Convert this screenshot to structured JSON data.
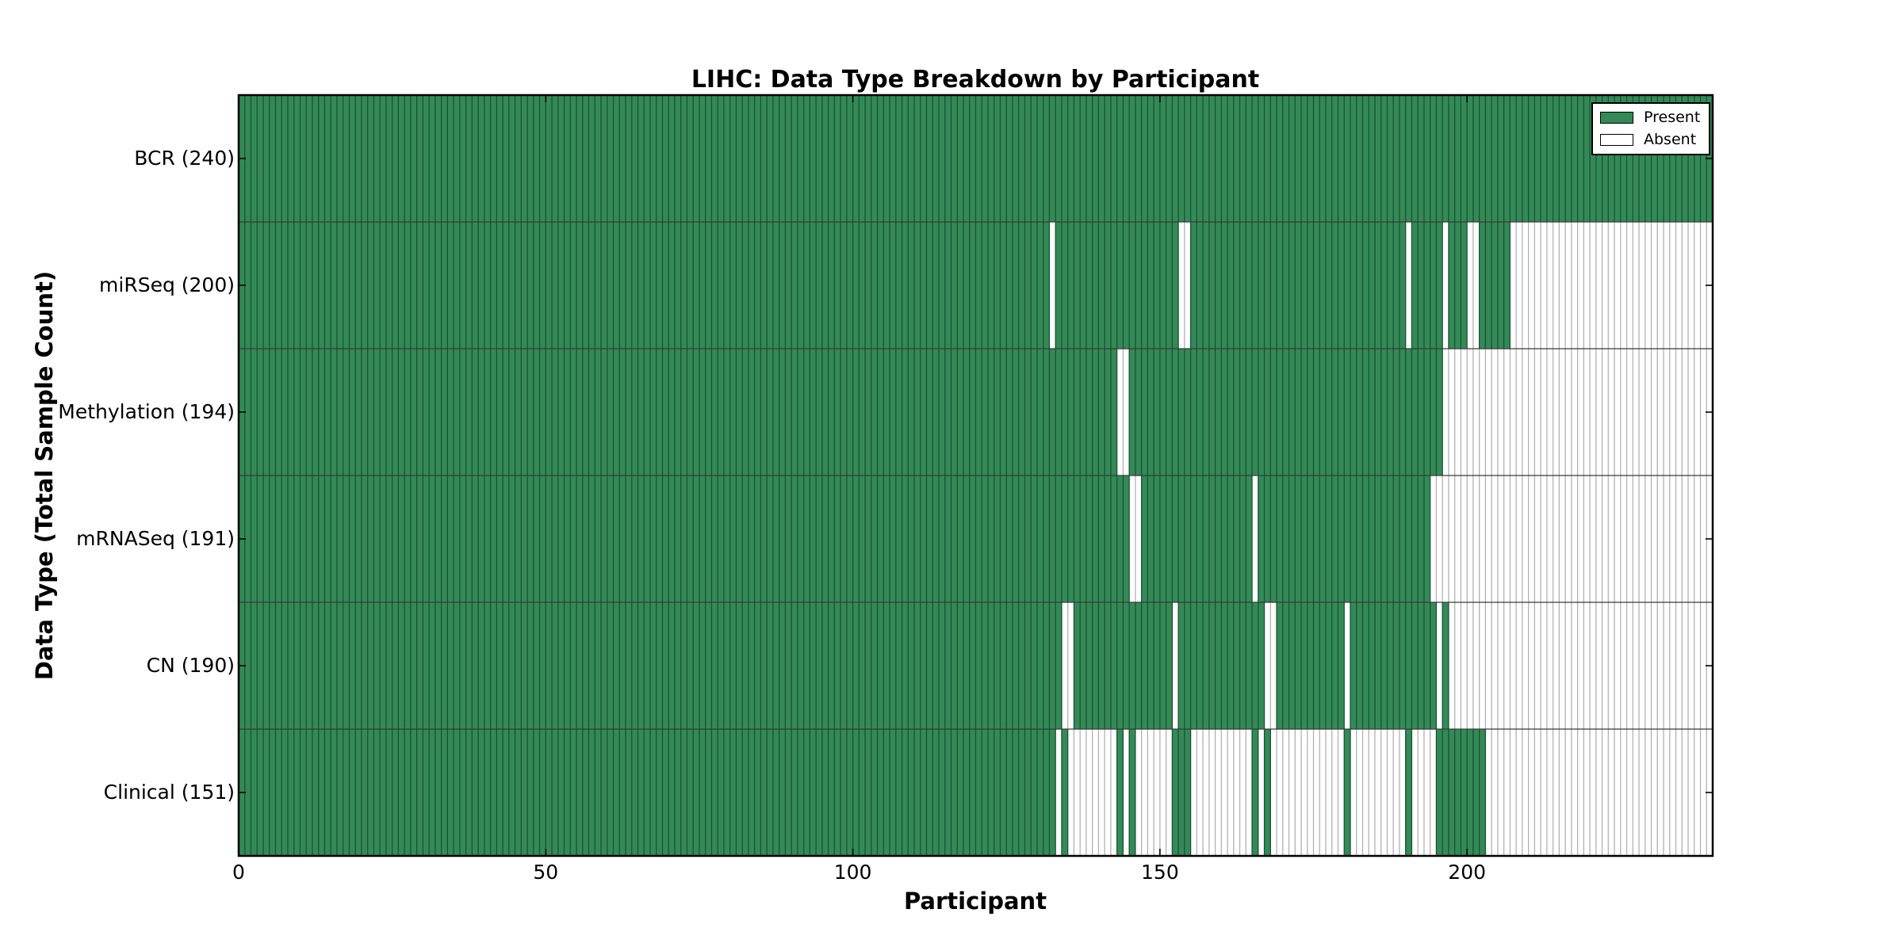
{
  "chart_data": {
    "type": "heatmap",
    "title": "LIHC: Data Type Breakdown by Participant",
    "xlabel": "Participant",
    "ylabel": "Data Type (Total Sample Count)",
    "cohort": "LIHC",
    "x_ticks": [
      0,
      50,
      100,
      150,
      200
    ],
    "xlim": [
      0,
      240
    ],
    "n_participants": 240,
    "grid": false,
    "legend_position": "upper right",
    "legend": {
      "items": [
        {
          "label": "Present",
          "key": "present"
        },
        {
          "label": "Absent",
          "key": "absent"
        }
      ]
    },
    "rows": [
      {
        "label": "BCR (240)",
        "data_type": "BCR",
        "present_count": 240,
        "absent_ranges": []
      },
      {
        "label": "miRSeq (200)",
        "data_type": "miRSeq",
        "present_count": 200,
        "absent_ranges": [
          [
            132,
            132
          ],
          [
            153,
            154
          ],
          [
            190,
            190
          ],
          [
            196,
            196
          ],
          [
            200,
            201
          ],
          [
            207,
            239
          ]
        ]
      },
      {
        "label": "Methylation (194)",
        "data_type": "Methylation",
        "present_count": 194,
        "absent_ranges": [
          [
            143,
            144
          ],
          [
            196,
            239
          ]
        ]
      },
      {
        "label": "mRNASeq (191)",
        "data_type": "mRNASeq",
        "present_count": 191,
        "absent_ranges": [
          [
            145,
            146
          ],
          [
            165,
            165
          ],
          [
            194,
            239
          ]
        ]
      },
      {
        "label": "CN (190)",
        "data_type": "CN",
        "present_count": 190,
        "absent_ranges": [
          [
            134,
            135
          ],
          [
            152,
            152
          ],
          [
            167,
            168
          ],
          [
            180,
            180
          ],
          [
            195,
            195
          ],
          [
            197,
            239
          ]
        ]
      },
      {
        "label": "Clinical (151)",
        "data_type": "Clinical",
        "present_count": 151,
        "absent_ranges": [
          [
            133,
            133
          ],
          [
            135,
            142
          ],
          [
            144,
            144
          ],
          [
            146,
            151
          ],
          [
            155,
            164
          ],
          [
            166,
            166
          ],
          [
            168,
            179
          ],
          [
            181,
            189
          ],
          [
            191,
            194
          ],
          [
            203,
            239
          ]
        ]
      }
    ],
    "colors": {
      "present_fill": "#338a57",
      "present_edge": "#1c5233",
      "absent_fill": "#ffffff",
      "absent_edge": "#b2b2b2",
      "separator": "#3a3a3a",
      "frame": "#000000",
      "text": "#000000",
      "background": "#ffffff"
    }
  }
}
